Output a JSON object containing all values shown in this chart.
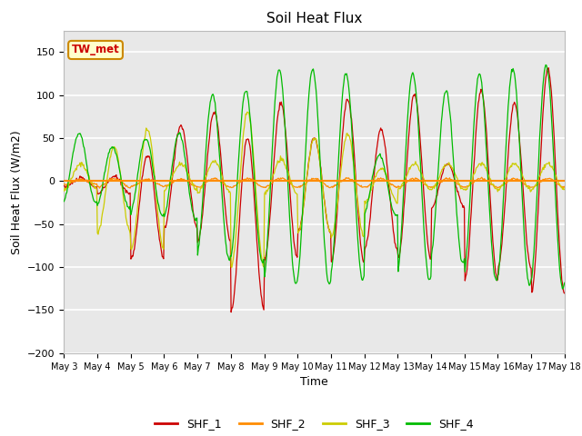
{
  "title": "Soil Heat Flux",
  "xlabel": "Time",
  "ylabel": "Soil Heat Flux (W/m2)",
  "ylim": [
    -200,
    175
  ],
  "yticks": [
    -200,
    -150,
    -100,
    -50,
    0,
    50,
    100,
    150
  ],
  "colors": {
    "SHF_1": "#cc0000",
    "SHF_2": "#ff8c00",
    "SHF_3": "#cccc00",
    "SHF_4": "#00bb00"
  },
  "hline_color": "#ff8c00",
  "label_box_text": "TW_met",
  "label_box_facecolor": "#ffffcc",
  "label_box_edgecolor": "#cc8800",
  "label_box_textcolor": "#cc0000",
  "bg_color": "#e8e8e8",
  "grid_color": "white",
  "n_days": 15,
  "n_points": 720,
  "title_fontsize": 11,
  "axis_fontsize": 9,
  "tick_fontsize": 7,
  "legend_fontsize": 9
}
